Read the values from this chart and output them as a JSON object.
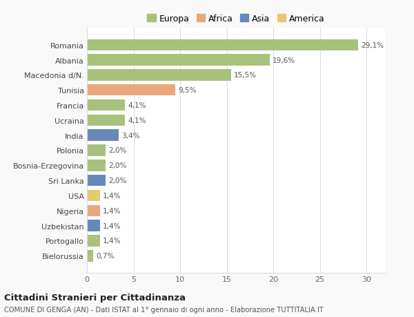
{
  "categories": [
    "Romania",
    "Albania",
    "Macedonia d/N.",
    "Tunisia",
    "Francia",
    "Ucraina",
    "India",
    "Polonia",
    "Bosnia-Erzegovina",
    "Sri Lanka",
    "USA",
    "Nigeria",
    "Uzbekistan",
    "Portogallo",
    "Bielorussia"
  ],
  "values": [
    29.1,
    19.6,
    15.5,
    9.5,
    4.1,
    4.1,
    3.4,
    2.0,
    2.0,
    2.0,
    1.4,
    1.4,
    1.4,
    1.4,
    0.7
  ],
  "labels": [
    "29,1%",
    "19,6%",
    "15,5%",
    "9,5%",
    "4,1%",
    "4,1%",
    "3,4%",
    "2,0%",
    "2,0%",
    "2,0%",
    "1,4%",
    "1,4%",
    "1,4%",
    "1,4%",
    "0,7%"
  ],
  "colors": [
    "#a8c17c",
    "#a8c17c",
    "#a8c17c",
    "#e8a87c",
    "#a8c17c",
    "#a8c17c",
    "#6688bb",
    "#a8c17c",
    "#a8c17c",
    "#6688bb",
    "#e8c870",
    "#e8a87c",
    "#6688bb",
    "#a8c17c",
    "#a8c17c"
  ],
  "legend": {
    "Europa": "#a8c17c",
    "Africa": "#e8a87c",
    "Asia": "#6688bb",
    "America": "#e8c870"
  },
  "title": "Cittadini Stranieri per Cittadinanza",
  "subtitle": "COMUNE DI GENGA (AN) - Dati ISTAT al 1° gennaio di ogni anno - Elaborazione TUTTITALIA.IT",
  "xlim": [
    0,
    32
  ],
  "xticks": [
    0,
    5,
    10,
    15,
    20,
    25,
    30
  ],
  "background_color": "#f9f9f9",
  "plot_background": "#ffffff",
  "grid_color": "#dddddd"
}
